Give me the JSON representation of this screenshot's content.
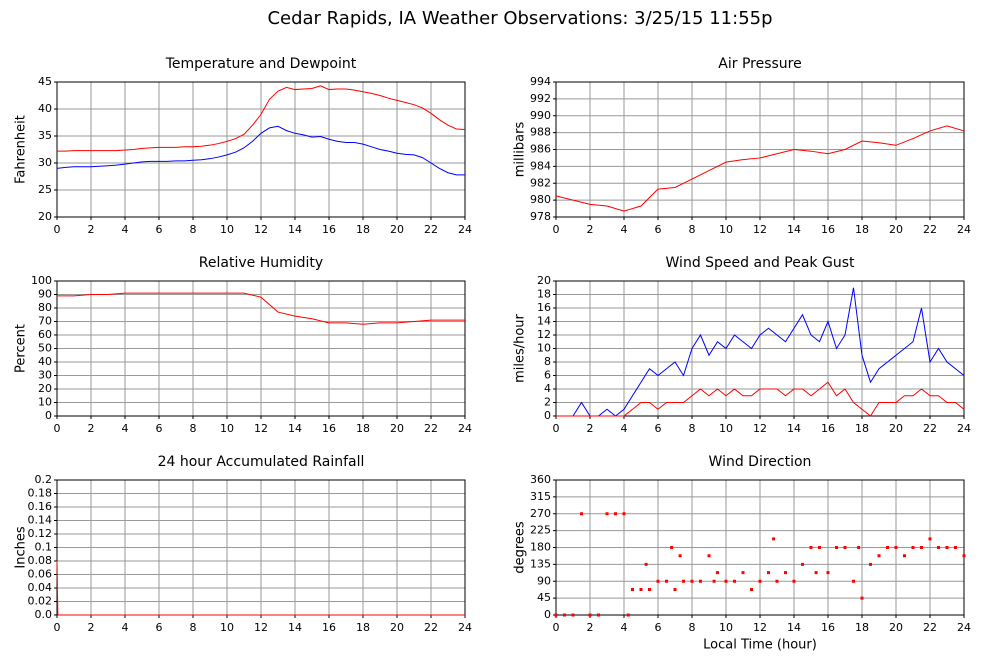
{
  "title": "Cedar Rapids, IA Weather Observations: 3/25/15 11:55p",
  "chart_data": [
    {
      "type": "line",
      "title": "Temperature and Dewpoint",
      "ylabel": "Fahrenheit",
      "x": [
        0,
        0.5,
        1,
        1.5,
        2,
        2.5,
        3,
        3.5,
        4,
        4.5,
        5,
        5.5,
        6,
        6.5,
        7,
        7.5,
        8,
        8.5,
        9,
        9.5,
        10,
        10.5,
        11,
        11.5,
        12,
        12.5,
        13,
        13.5,
        14,
        14.5,
        15,
        15.5,
        16,
        16.5,
        17,
        17.5,
        18,
        18.5,
        19,
        19.5,
        20,
        20.5,
        21,
        21.5,
        22,
        22.5,
        23,
        23.5,
        24
      ],
      "series": [
        {
          "color": "#ff0000",
          "values": [
            32.2,
            32.2,
            32.3,
            32.3,
            32.3,
            32.3,
            32.3,
            32.3,
            32.4,
            32.5,
            32.7,
            32.8,
            32.9,
            32.9,
            32.9,
            33,
            33,
            33.1,
            33.3,
            33.6,
            34,
            34.5,
            35.3,
            37,
            39,
            41.8,
            43.3,
            44,
            43.6,
            43.7,
            43.8,
            44.3,
            43.6,
            43.7,
            43.7,
            43.5,
            43.2,
            42.9,
            42.5,
            42,
            41.6,
            41.2,
            40.8,
            40.2,
            39.2,
            38,
            37,
            36.3,
            36.2
          ]
        },
        {
          "color": "#0000ff",
          "values": [
            29,
            29.2,
            29.3,
            29.3,
            29.3,
            29.4,
            29.5,
            29.6,
            29.8,
            30,
            30.2,
            30.3,
            30.3,
            30.3,
            30.4,
            30.4,
            30.5,
            30.6,
            30.8,
            31.1,
            31.5,
            32,
            32.8,
            34,
            35.5,
            36.5,
            36.8,
            36,
            35.5,
            35.2,
            34.8,
            34.9,
            34.4,
            34,
            33.8,
            33.8,
            33.5,
            33,
            32.5,
            32.2,
            31.8,
            31.6,
            31.5,
            31,
            30,
            29,
            28.2,
            27.8,
            27.8
          ]
        }
      ],
      "xlim": [
        0,
        24
      ],
      "xticks": [
        0,
        2,
        4,
        6,
        8,
        10,
        12,
        14,
        16,
        18,
        20,
        22,
        24
      ],
      "ylim": [
        20,
        45
      ],
      "yticks": [
        20,
        25,
        30,
        35,
        40,
        45
      ],
      "grid": true
    },
    {
      "type": "line",
      "title": "Air Pressure",
      "ylabel": "millibars",
      "x": [
        0,
        1,
        2,
        3,
        4,
        5,
        6,
        7,
        8,
        9,
        10,
        11,
        12,
        13,
        14,
        15,
        16,
        17,
        18,
        19,
        20,
        21,
        22,
        23,
        24
      ],
      "series": [
        {
          "color": "#ff0000",
          "values": [
            980.5,
            980,
            979.5,
            979.3,
            978.7,
            979.3,
            981.3,
            981.5,
            982.5,
            983.5,
            984.5,
            984.8,
            985,
            985.5,
            986,
            985.8,
            985.5,
            986,
            987,
            986.8,
            986.5,
            987.3,
            988.2,
            988.8,
            988.2
          ]
        }
      ],
      "xlim": [
        0,
        24
      ],
      "xticks": [
        0,
        2,
        4,
        6,
        8,
        10,
        12,
        14,
        16,
        18,
        20,
        22,
        24
      ],
      "ylim": [
        978,
        994
      ],
      "yticks": [
        978,
        980,
        982,
        984,
        986,
        988,
        990,
        992,
        994
      ],
      "grid": true
    },
    {
      "type": "line",
      "title": "Relative Humidity",
      "ylabel": "Percent",
      "x": [
        0,
        1,
        2,
        3,
        4,
        5,
        6,
        7,
        8,
        9,
        10,
        11,
        12,
        13,
        14,
        15,
        16,
        17,
        18,
        19,
        20,
        21,
        22,
        23,
        24
      ],
      "series": [
        {
          "color": "#ff0000",
          "values": [
            89,
            89,
            90,
            90,
            91,
            91,
            91,
            91,
            91,
            91,
            91,
            91,
            88,
            77,
            74,
            72,
            69,
            69,
            68,
            69,
            69,
            70,
            71,
            71,
            71
          ]
        }
      ],
      "xlim": [
        0,
        24
      ],
      "xticks": [
        0,
        2,
        4,
        6,
        8,
        10,
        12,
        14,
        16,
        18,
        20,
        22,
        24
      ],
      "ylim": [
        0,
        100
      ],
      "yticks": [
        0,
        10,
        20,
        30,
        40,
        50,
        60,
        70,
        80,
        90,
        100
      ],
      "grid": true
    },
    {
      "type": "line",
      "title": "Wind Speed and Peak Gust",
      "ylabel": "miles/hour",
      "x": [
        0,
        0.5,
        1,
        1.5,
        2,
        2.5,
        3,
        3.5,
        4,
        4.5,
        5,
        5.5,
        6,
        6.5,
        7,
        7.5,
        8,
        8.5,
        9,
        9.5,
        10,
        10.5,
        11,
        11.5,
        12,
        12.5,
        13,
        13.5,
        14,
        14.5,
        15,
        15.5,
        16,
        16.5,
        17,
        17.5,
        18,
        18.5,
        19,
        19.5,
        20,
        20.5,
        21,
        21.5,
        22,
        22.5,
        23,
        23.5,
        24
      ],
      "series": [
        {
          "color": "#0000ff",
          "values": [
            0,
            0,
            0,
            2,
            0,
            0,
            1,
            0,
            1,
            3,
            5,
            7,
            6,
            7,
            8,
            6,
            10,
            12,
            9,
            11,
            10,
            12,
            11,
            10,
            12,
            13,
            12,
            11,
            13,
            15,
            12,
            11,
            14,
            10,
            12,
            19,
            9,
            5,
            7,
            8,
            9,
            10,
            11,
            16,
            8,
            10,
            8,
            7,
            6
          ]
        },
        {
          "color": "#ff0000",
          "values": [
            0,
            0,
            0,
            0,
            0,
            0,
            0,
            0,
            0,
            1,
            2,
            2,
            1,
            2,
            2,
            2,
            3,
            4,
            3,
            4,
            3,
            4,
            3,
            3,
            4,
            4,
            4,
            3,
            4,
            4,
            3,
            4,
            5,
            3,
            4,
            2,
            1,
            0,
            2,
            2,
            2,
            3,
            3,
            4,
            3,
            3,
            2,
            2,
            1
          ]
        }
      ],
      "xlim": [
        0,
        24
      ],
      "xticks": [
        0,
        2,
        4,
        6,
        8,
        10,
        12,
        14,
        16,
        18,
        20,
        22,
        24
      ],
      "ylim": [
        0,
        20
      ],
      "yticks": [
        0,
        2,
        4,
        6,
        8,
        10,
        12,
        14,
        16,
        18,
        20
      ],
      "grid": true
    },
    {
      "type": "line",
      "title": "24 hour Accumulated Rainfall",
      "ylabel": "Inches",
      "x": [
        0,
        0.05,
        24
      ],
      "series": [
        {
          "color": "#ff0000",
          "values": [
            0.08,
            0,
            0
          ]
        }
      ],
      "xlim": [
        0,
        24
      ],
      "xticks": [
        0,
        2,
        4,
        6,
        8,
        10,
        12,
        14,
        16,
        18,
        20,
        22,
        24
      ],
      "ylim": [
        0,
        0.2
      ],
      "yticks": [
        {
          "value": 0,
          "label": "0.0"
        },
        0.02,
        0.04,
        0.06,
        0.08,
        0.1,
        0.12,
        0.14,
        0.16,
        0.18,
        0.2
      ],
      "grid": true
    },
    {
      "type": "scatter",
      "title": "Wind Direction",
      "ylabel": "degrees",
      "xlabel": "Local Time (hour)",
      "color": "#ff0000",
      "x": [
        0,
        0.5,
        1,
        1.5,
        2,
        2.5,
        3,
        3.5,
        4,
        4.25,
        4.5,
        5,
        5.3,
        5.5,
        6,
        6.5,
        6.8,
        7,
        7.3,
        7.5,
        8,
        8.5,
        9,
        9.3,
        9.5,
        10,
        10.5,
        11,
        11.5,
        12,
        12.5,
        12.8,
        13,
        13.5,
        14,
        14.5,
        15,
        15.3,
        15.5,
        16,
        16.5,
        17,
        17.5,
        17.8,
        18,
        18.5,
        19,
        19.5,
        20,
        20.5,
        21,
        21.5,
        22,
        22.5,
        23,
        23.5,
        24
      ],
      "values": [
        0,
        0,
        0,
        270,
        0,
        0,
        270,
        270,
        270,
        0,
        68,
        68,
        135,
        68,
        90,
        90,
        180,
        68,
        158,
        90,
        90,
        90,
        158,
        90,
        113,
        90,
        90,
        113,
        68,
        90,
        113,
        203,
        90,
        113,
        90,
        135,
        180,
        113,
        180,
        113,
        180,
        180,
        90,
        180,
        45,
        135,
        158,
        180,
        180,
        158,
        180,
        180,
        203,
        180,
        180,
        180,
        158
      ],
      "xlim": [
        0,
        24
      ],
      "xticks": [
        0,
        2,
        4,
        6,
        8,
        10,
        12,
        14,
        16,
        18,
        20,
        22,
        24
      ],
      "ylim": [
        0,
        360
      ],
      "yticks": [
        0,
        45,
        90,
        135,
        180,
        225,
        270,
        315,
        360
      ],
      "grid": true
    }
  ]
}
